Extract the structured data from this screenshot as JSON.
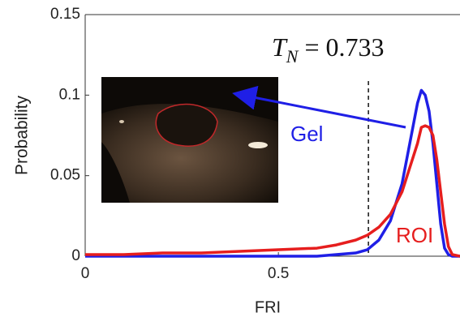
{
  "chart_data": {
    "type": "line",
    "xlabel": "FRI",
    "ylabel": "Probability",
    "x": [
      0,
      0.1,
      0.2,
      0.3,
      0.4,
      0.5,
      0.6,
      0.65,
      0.7,
      0.73,
      0.76,
      0.79,
      0.82,
      0.84,
      0.86,
      0.87,
      0.88,
      0.89,
      0.9,
      0.91,
      0.92,
      0.93,
      0.94,
      0.95,
      0.97
    ],
    "series": [
      {
        "name": "Gel",
        "color": "#1f1fe6",
        "values": [
          0,
          0,
          0,
          0,
          0,
          0,
          0,
          0.001,
          0.002,
          0.004,
          0.01,
          0.022,
          0.045,
          0.07,
          0.095,
          0.103,
          0.1,
          0.09,
          0.07,
          0.045,
          0.02,
          0.005,
          0.001,
          0,
          0
        ]
      },
      {
        "name": "ROI",
        "color": "#e61e1e",
        "values": [
          0.001,
          0.001,
          0.002,
          0.002,
          0.003,
          0.004,
          0.005,
          0.007,
          0.01,
          0.013,
          0.018,
          0.026,
          0.04,
          0.055,
          0.07,
          0.08,
          0.081,
          0.08,
          0.075,
          0.06,
          0.04,
          0.02,
          0.006,
          0.001,
          0
        ]
      }
    ],
    "threshold": 0.733,
    "threshold_label": {
      "symbol": "T",
      "subscript": "N",
      "text": "= 0.733"
    },
    "xlim": [
      0,
      0.97
    ],
    "xticks": [
      0,
      0.5
    ],
    "ylim": [
      0,
      0.15
    ],
    "yticks": [
      0,
      0.05,
      0.1,
      0.15
    ]
  }
}
